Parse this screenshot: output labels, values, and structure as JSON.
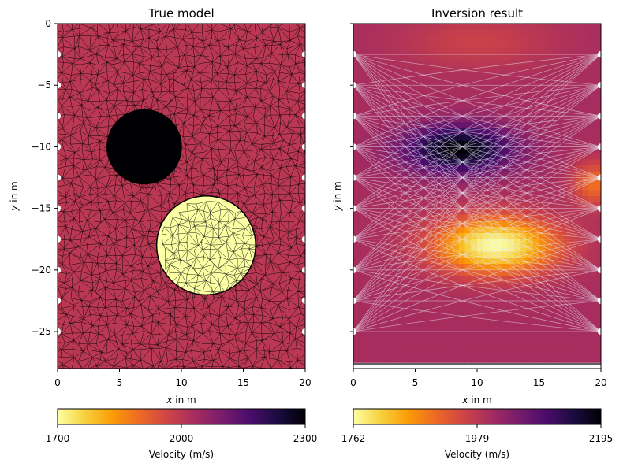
{
  "chart_data": [
    {
      "type": "heatmap",
      "title": "True model",
      "xlabel_var": "x",
      "xlabel_unit": " in m",
      "ylabel_var": "y",
      "ylabel_unit": " in m",
      "xlim": [
        0,
        20
      ],
      "ylim": [
        -28,
        0
      ],
      "xticks": [
        "0",
        "5",
        "10",
        "15",
        "20"
      ],
      "yticks": [
        "0",
        "−5",
        "−10",
        "−15",
        "−20",
        "−25"
      ],
      "background_velocity": 2000,
      "anomalies": [
        {
          "shape": "circle",
          "cx": 7,
          "cy": -10,
          "r": 3,
          "velocity": 2300
        },
        {
          "shape": "circle",
          "cx": 12,
          "cy": -18,
          "r": 4,
          "velocity": 1700
        }
      ],
      "sensors_y": [
        -2.5,
        -5,
        -7.5,
        -10,
        -12.5,
        -15,
        -17.5,
        -20,
        -22.5,
        -25
      ],
      "sensors_x": [
        0,
        20
      ],
      "colorbar": {
        "min": 1700,
        "mid": 2000,
        "max": 2300,
        "ticks": [
          "1700",
          "2000",
          "2300"
        ],
        "label": "Velocity (m/s)"
      }
    },
    {
      "type": "heatmap",
      "title": "Inversion result",
      "xlabel_var": "x",
      "xlabel_unit": " in m",
      "ylabel_var": "y",
      "ylabel_unit": " in m",
      "xlim": [
        0,
        20
      ],
      "ylim": [
        -28,
        0
      ],
      "xticks": [
        "0",
        "5",
        "10",
        "15",
        "20"
      ],
      "yticks": [
        "",
        "",
        "",
        "",
        "",
        ""
      ],
      "background_velocity": 2000,
      "anomalies": [
        {
          "shape": "ellipse",
          "cx": 8.5,
          "cy": -10.2,
          "rx": 5.0,
          "ry": 2.2,
          "velocity": 2195
        },
        {
          "shape": "ellipse",
          "cx": 11.5,
          "cy": -18,
          "rx": 5.5,
          "ry": 2.6,
          "velocity": 1762
        },
        {
          "shape": "ellipse",
          "cx": 10,
          "cy": -1.5,
          "rx": 7,
          "ry": 2.5,
          "velocity": 1960
        },
        {
          "shape": "ellipse",
          "cx": 19.5,
          "cy": -13,
          "rx": 2,
          "ry": 2,
          "velocity": 1900
        }
      ],
      "rays": "all source-receiver pairs between left (x=0) and right (x=20) sensors",
      "sensors_y": [
        -2.5,
        -5,
        -7.5,
        -10,
        -12.5,
        -15,
        -17.5,
        -20,
        -22.5,
        -25
      ],
      "sensors_x": [
        0,
        20
      ],
      "colorbar": {
        "min": 1762,
        "mid": 1979,
        "max": 2195,
        "ticks": [
          "1762",
          "1979",
          "2195"
        ],
        "label": "Velocity (m/s)"
      }
    }
  ],
  "colormap_stops": [
    "#fcffa4",
    "#f7d13d",
    "#fb9b06",
    "#ed6925",
    "#cf4446",
    "#a52c60",
    "#781c6d",
    "#4a0c6b",
    "#1b0c41",
    "#000004"
  ]
}
